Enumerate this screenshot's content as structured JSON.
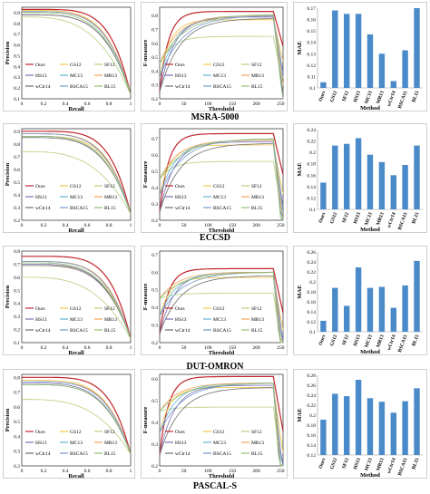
{
  "colors": {
    "Ours": "#c0262d",
    "GS12": "#f3c64a",
    "SF12": "#b4d07c",
    "HS13": "#7a6fb2",
    "MC13": "#5fb3d6",
    "MR13": "#f1a35c",
    "wCtr14": "#6e6e6e",
    "BSCA15": "#7799cc",
    "BL15": "#8fc070",
    "bar": "#4a8ac9"
  },
  "legend": [
    "Ours",
    "GS12",
    "SF12",
    "HS13",
    "MC13",
    "MR13",
    "wCtr14",
    "BSCA15",
    "BL15"
  ],
  "datasets": [
    {
      "name": "MSRA-5000",
      "pr": {
        "xlabel": "Recall",
        "ylabel": "Precision",
        "xticks": [
          "0",
          "0.2",
          "0.4",
          "0.6",
          "0.8",
          "1"
        ],
        "yticks": [
          "0.1",
          "0.2",
          "0.3",
          "0.4",
          "0.5",
          "0.6",
          "0.7",
          "0.8",
          "0.9"
        ],
        "ylim": [
          0.1,
          0.95
        ]
      },
      "fm": {
        "xlabel": "Threshold",
        "ylabel": "F-measure",
        "xticks": [
          "0",
          "50",
          "100",
          "150",
          "200",
          "250"
        ],
        "yticks": [
          "0.2",
          "0.3",
          "0.4",
          "0.5",
          "0.6",
          "0.7",
          "0.8"
        ],
        "ylim": [
          0.2,
          0.86
        ]
      },
      "mae": {
        "xlabel": "Method",
        "ylabel": "MAE",
        "yticks": [
          "0.1",
          "0.11",
          "0.12",
          "0.13",
          "0.14",
          "0.15",
          "0.16",
          "0.17"
        ],
        "ylim": [
          0.1,
          0.17
        ],
        "values": [
          0.105,
          0.168,
          0.165,
          0.165,
          0.147,
          0.13,
          0.106,
          0.133,
          0.17
        ]
      }
    },
    {
      "name": "ECCSD",
      "pr": {
        "xlabel": "Recall",
        "ylabel": "Precision",
        "xticks": [
          "0",
          "0.2",
          "0.4",
          "0.6",
          "0.8",
          "1"
        ],
        "yticks": [
          "0.2",
          "0.3",
          "0.4",
          "0.5",
          "0.6",
          "0.7",
          "0.8",
          "0.9"
        ],
        "ylim": [
          0.2,
          0.92
        ]
      },
      "fm": {
        "xlabel": "Threshold",
        "ylabel": "F-measure",
        "xticks": [
          "0",
          "50",
          "100",
          "150",
          "200",
          "250"
        ],
        "yticks": [
          "0.2",
          "0.3",
          "0.4",
          "0.5",
          "0.6",
          "0.7"
        ],
        "ylim": [
          0.2,
          0.76
        ]
      },
      "mae": {
        "xlabel": "Method",
        "ylabel": "MAE",
        "yticks": [
          "0.1",
          "0.12",
          "0.14",
          "0.16",
          "0.18",
          "0.2",
          "0.22",
          "0.24"
        ],
        "ylim": [
          0.1,
          0.24
        ],
        "values": [
          0.147,
          0.212,
          0.215,
          0.225,
          0.196,
          0.183,
          0.16,
          0.178,
          0.212
        ]
      }
    },
    {
      "name": "DUT-OMRON",
      "pr": {
        "xlabel": "Recall",
        "ylabel": "Precision",
        "xticks": [
          "0",
          "0.2",
          "0.4",
          "0.6",
          "0.8",
          "1"
        ],
        "yticks": [
          "0.1",
          "0.2",
          "0.3",
          "0.4",
          "0.5",
          "0.6",
          "0.7",
          "0.8"
        ],
        "ylim": [
          0.1,
          0.8
        ]
      },
      "fm": {
        "xlabel": "Threshold",
        "ylabel": "F-measure",
        "xticks": [
          "0",
          "50",
          "100",
          "150",
          "200",
          "250"
        ],
        "yticks": [
          "0.2",
          "0.3",
          "0.4",
          "0.5",
          "0.6",
          "0.7"
        ],
        "ylim": [
          0.2,
          0.72
        ]
      },
      "mae": {
        "xlabel": "Method",
        "ylabel": "MAE",
        "yticks": [
          "0.1",
          "0.12",
          "0.14",
          "0.16",
          "0.18",
          "0.2",
          "0.22",
          "0.24",
          "0.26"
        ],
        "ylim": [
          0.1,
          0.26
        ],
        "values": [
          0.122,
          0.188,
          0.152,
          0.229,
          0.188,
          0.19,
          0.148,
          0.193,
          0.242
        ]
      }
    },
    {
      "name": "PASCAL-S",
      "pr": {
        "xlabel": "Recall",
        "ylabel": "Precision",
        "xticks": [
          "0",
          "0.2",
          "0.4",
          "0.6",
          "0.8",
          "1"
        ],
        "yticks": [
          "0.2",
          "0.3",
          "0.4",
          "0.5",
          "0.6",
          "0.7",
          "0.8"
        ],
        "ylim": [
          0.2,
          0.82
        ]
      },
      "fm": {
        "xlabel": "Threshold",
        "ylabel": "F-measure",
        "xticks": [
          "0",
          "50",
          "100",
          "150",
          "200",
          "250"
        ],
        "yticks": [
          "0.2",
          "0.3",
          "0.4",
          "0.5",
          "0.6"
        ],
        "ylim": [
          0.2,
          0.62
        ]
      },
      "mae": {
        "xlabel": "Method",
        "ylabel": "MAE",
        "yticks": [
          "0.12",
          "0.14",
          "0.16",
          "0.18",
          "0.2",
          "0.22",
          "0.24",
          "0.26",
          "0.28"
        ],
        "ylim": [
          0.12,
          0.28
        ],
        "values": [
          0.191,
          0.243,
          0.238,
          0.271,
          0.234,
          0.227,
          0.205,
          0.228,
          0.254
        ]
      }
    }
  ],
  "chart_data": [
    {
      "type": "bar",
      "title": "MSRA-5000",
      "xlabel": "Method",
      "ylabel": "MAE",
      "categories": [
        "Ours",
        "GS12",
        "SF12",
        "HS13",
        "MC13",
        "MR13",
        "wCtr14",
        "BSCA15",
        "BL15"
      ],
      "values": [
        0.105,
        0.168,
        0.165,
        0.165,
        0.147,
        0.13,
        0.106,
        0.133,
        0.17
      ],
      "ylim": [
        0.1,
        0.17
      ]
    },
    {
      "type": "bar",
      "title": "ECCSD",
      "xlabel": "Method",
      "ylabel": "MAE",
      "categories": [
        "Ours",
        "GS12",
        "SF12",
        "HS13",
        "MC13",
        "MR13",
        "wCtr14",
        "BSCA15",
        "BL15"
      ],
      "values": [
        0.147,
        0.212,
        0.215,
        0.225,
        0.196,
        0.183,
        0.16,
        0.178,
        0.212
      ],
      "ylim": [
        0.1,
        0.24
      ]
    },
    {
      "type": "bar",
      "title": "DUT-OMRON",
      "xlabel": "Method",
      "ylabel": "MAE",
      "categories": [
        "Ours",
        "GS12",
        "SF12",
        "HS13",
        "MC13",
        "MR13",
        "wCtr14",
        "BSCA15",
        "BL15"
      ],
      "values": [
        0.122,
        0.188,
        0.152,
        0.229,
        0.188,
        0.19,
        0.148,
        0.193,
        0.242
      ],
      "ylim": [
        0.1,
        0.26
      ]
    },
    {
      "type": "bar",
      "title": "PASCAL-S",
      "xlabel": "Method",
      "ylabel": "MAE",
      "categories": [
        "Ours",
        "GS12",
        "SF12",
        "HS13",
        "MC13",
        "MR13",
        "wCtr14",
        "BSCA15",
        "BL15"
      ],
      "values": [
        0.191,
        0.243,
        0.238,
        0.271,
        0.234,
        0.227,
        0.205,
        0.228,
        0.254
      ],
      "ylim": [
        0.12,
        0.28
      ]
    }
  ]
}
